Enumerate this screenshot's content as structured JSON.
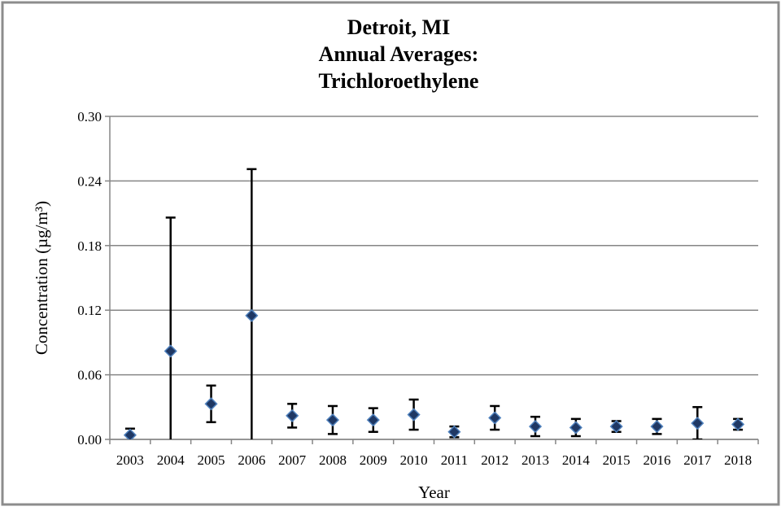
{
  "chart_data": {
    "type": "scatter_errorbar",
    "title": [
      "Detroit, MI",
      "Annual Averages:",
      "Trichloroethylene"
    ],
    "x_label": "Year",
    "y_label": "Concentration (µg/m³)",
    "categories": [
      "2003",
      "2004",
      "2005",
      "2006",
      "2007",
      "2008",
      "2009",
      "2010",
      "2011",
      "2012",
      "2013",
      "2014",
      "2015",
      "2016",
      "2017",
      "2018"
    ],
    "values": [
      0.004,
      0.082,
      0.033,
      0.115,
      0.022,
      0.018,
      0.018,
      0.023,
      0.007,
      0.02,
      0.012,
      0.011,
      0.012,
      0.012,
      0.015,
      0.014
    ],
    "errors": [
      0.006,
      0.124,
      0.017,
      0.136,
      0.011,
      0.013,
      0.011,
      0.014,
      0.005,
      0.011,
      0.009,
      0.008,
      0.005,
      0.007,
      0.015,
      0.005
    ],
    "color": "#1f3864",
    "marker_edge": "#4f81bd",
    "error_color": "#000000",
    "ylim": [
      0,
      0.3
    ],
    "yticks": [
      {
        "value": 0,
        "label": "0.00"
      },
      0.06,
      0.12,
      0.18,
      0.24,
      {
        "value": 0.3,
        "label": "0.30"
      }
    ],
    "grid": true
  }
}
